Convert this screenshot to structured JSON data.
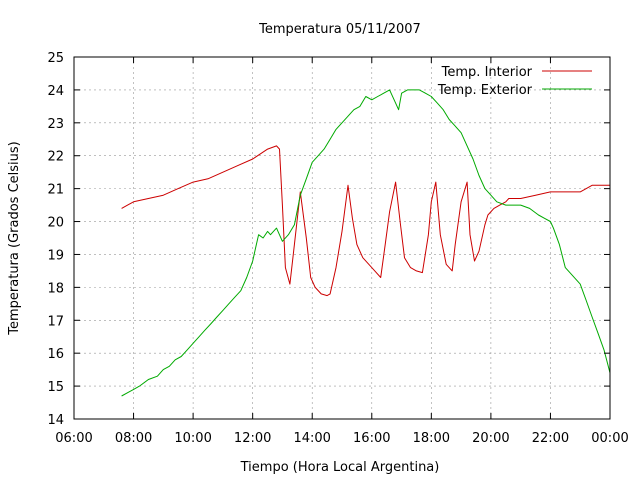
{
  "chart_data": {
    "type": "line",
    "title": "Temperatura 05/11/2007",
    "xlabel": "Tiempo (Hora Local Argentina)",
    "ylabel": "Temperatura (Grados Celsius)",
    "xlim": [
      6,
      24
    ],
    "ylim": [
      14,
      25
    ],
    "x_ticks": [
      6,
      8,
      10,
      12,
      14,
      16,
      18,
      20,
      22,
      24
    ],
    "x_tick_labels": [
      "06:00",
      "08:00",
      "10:00",
      "12:00",
      "14:00",
      "16:00",
      "18:00",
      "20:00",
      "22:00",
      "00:00"
    ],
    "y_ticks": [
      14,
      15,
      16,
      17,
      18,
      19,
      20,
      21,
      22,
      23,
      24,
      25
    ],
    "y_tick_labels": [
      "14",
      "15",
      "16",
      "17",
      "18",
      "19",
      "20",
      "21",
      "22",
      "23",
      "24",
      "25"
    ],
    "grid": true,
    "legend_position": "top-right",
    "x_unit": "hours (local time)",
    "series": [
      {
        "name": "Temp. Interior",
        "color": "#cc0000",
        "x": [
          7.6,
          7.8,
          8.0,
          8.5,
          9.0,
          9.5,
          10.0,
          10.5,
          11.0,
          11.5,
          12.0,
          12.5,
          12.8,
          12.9,
          13.0,
          13.1,
          13.25,
          13.4,
          13.6,
          13.8,
          13.95,
          14.1,
          14.3,
          14.5,
          14.6,
          14.8,
          15.0,
          15.2,
          15.35,
          15.5,
          15.7,
          15.9,
          16.1,
          16.3,
          16.45,
          16.6,
          16.8,
          16.95,
          17.1,
          17.3,
          17.5,
          17.7,
          17.9,
          18.0,
          18.15,
          18.3,
          18.5,
          18.7,
          18.8,
          19.0,
          19.2,
          19.3,
          19.45,
          19.6,
          19.8,
          19.9,
          20.1,
          20.3,
          20.5,
          20.6,
          21.0,
          21.5,
          22.0,
          22.5,
          23.0,
          23.4,
          23.6,
          24.0
        ],
        "y": [
          20.4,
          20.5,
          20.6,
          20.7,
          20.8,
          21.0,
          21.2,
          21.3,
          21.5,
          21.7,
          21.9,
          22.2,
          22.3,
          22.2,
          20.5,
          18.6,
          18.1,
          19.3,
          20.9,
          19.5,
          18.3,
          18.0,
          17.8,
          17.75,
          17.8,
          18.6,
          19.7,
          21.1,
          20.1,
          19.3,
          18.9,
          18.7,
          18.5,
          18.3,
          19.3,
          20.3,
          21.2,
          20.0,
          18.9,
          18.6,
          18.5,
          18.45,
          19.6,
          20.6,
          21.2,
          19.6,
          18.7,
          18.5,
          19.3,
          20.6,
          21.2,
          19.6,
          18.8,
          19.1,
          19.9,
          20.2,
          20.4,
          20.5,
          20.6,
          20.7,
          20.7,
          20.8,
          20.9,
          20.9,
          20.9,
          21.1,
          21.1,
          21.1
        ]
      },
      {
        "name": "Temp. Exterior",
        "color": "#00aa00",
        "x": [
          7.6,
          7.8,
          8.0,
          8.2,
          8.5,
          8.8,
          9.0,
          9.2,
          9.4,
          9.6,
          9.8,
          10.0,
          10.2,
          10.4,
          10.6,
          10.8,
          11.0,
          11.2,
          11.4,
          11.6,
          11.8,
          12.0,
          12.1,
          12.2,
          12.35,
          12.5,
          12.6,
          12.8,
          13.0,
          13.2,
          13.4,
          13.6,
          13.8,
          14.0,
          14.2,
          14.4,
          14.6,
          14.8,
          15.0,
          15.2,
          15.4,
          15.6,
          15.8,
          16.0,
          16.2,
          16.4,
          16.6,
          16.8,
          16.9,
          17.0,
          17.2,
          17.4,
          17.6,
          17.8,
          18.0,
          18.2,
          18.4,
          18.6,
          18.8,
          19.0,
          19.2,
          19.4,
          19.6,
          19.8,
          20.0,
          20.2,
          20.5,
          20.8,
          21.0,
          21.3,
          21.6,
          21.8,
          22.0,
          22.1,
          22.3,
          22.5,
          22.7,
          23.0,
          23.2,
          23.4,
          23.6,
          23.8,
          24.0
        ],
        "y": [
          14.7,
          14.8,
          14.9,
          15.0,
          15.2,
          15.3,
          15.5,
          15.6,
          15.8,
          15.9,
          16.1,
          16.3,
          16.5,
          16.7,
          16.9,
          17.1,
          17.3,
          17.5,
          17.7,
          17.9,
          18.3,
          18.8,
          19.2,
          19.6,
          19.5,
          19.7,
          19.6,
          19.8,
          19.4,
          19.6,
          19.9,
          20.8,
          21.3,
          21.8,
          22.0,
          22.2,
          22.5,
          22.8,
          23.0,
          23.2,
          23.4,
          23.5,
          23.8,
          23.7,
          23.8,
          23.9,
          24.0,
          23.6,
          23.4,
          23.9,
          24.0,
          24.0,
          24.0,
          23.9,
          23.8,
          23.6,
          23.4,
          23.1,
          22.9,
          22.7,
          22.3,
          21.9,
          21.4,
          21.0,
          20.8,
          20.6,
          20.5,
          20.5,
          20.5,
          20.4,
          20.2,
          20.1,
          20.0,
          19.8,
          19.3,
          18.6,
          18.4,
          18.1,
          17.6,
          17.1,
          16.6,
          16.1,
          15.4
        ]
      }
    ]
  }
}
